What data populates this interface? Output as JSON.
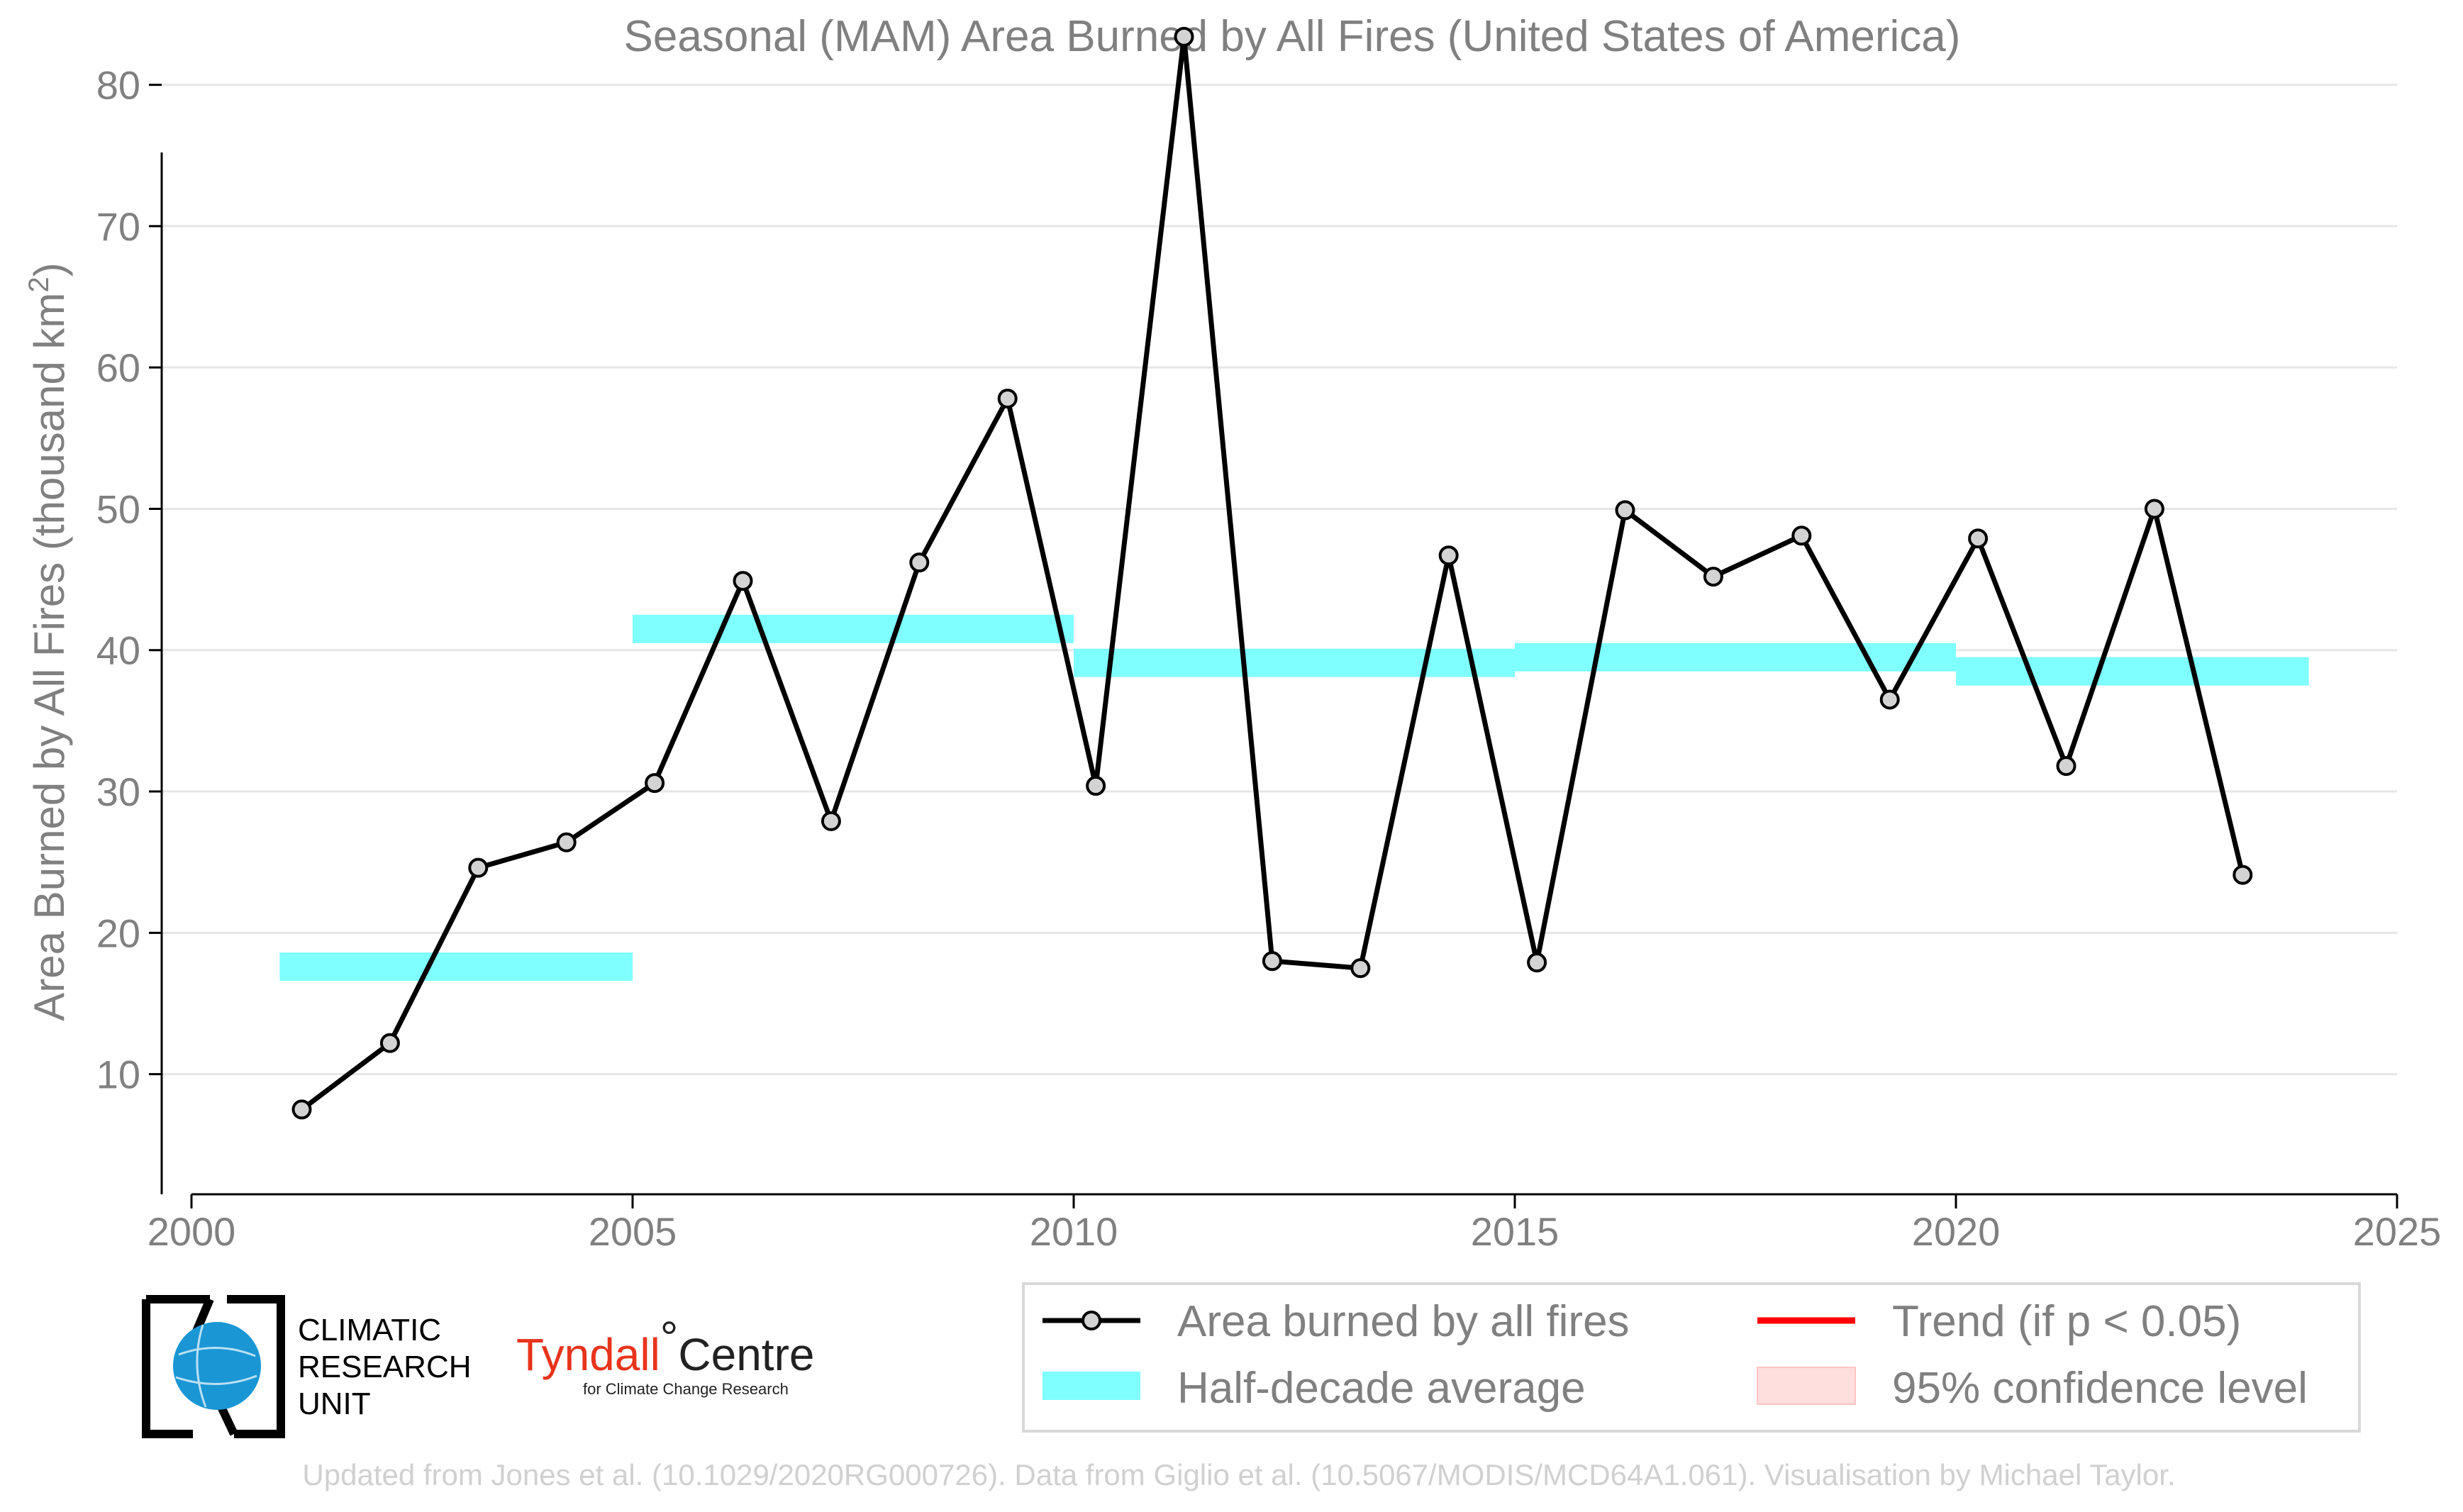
{
  "chart_data": {
    "type": "line",
    "title": "Seasonal (MAM) Area Burned by All Fires (United States of America)",
    "ylabel": "Area Burned by All Fires (thousand km",
    "ylabel_superscript": "2",
    "ylabel_close": ")",
    "xlabel": "",
    "xlim": [
      2000,
      2025
    ],
    "ylim": [
      1.5,
      86
    ],
    "xticks": [
      2000,
      2005,
      2010,
      2015,
      2020,
      2025
    ],
    "yticks": [
      10,
      20,
      30,
      40,
      50,
      60,
      70,
      80
    ],
    "grid": "horizontal",
    "series": [
      {
        "name": "Area burned by all fires",
        "color": "#000000",
        "marker_fill": "#d3d3d3",
        "x": [
          2001,
          2002,
          2003,
          2004,
          2005,
          2006,
          2007,
          2008,
          2009,
          2010,
          2011,
          2012,
          2013,
          2014,
          2015,
          2016,
          2017,
          2018,
          2019,
          2020,
          2021,
          2022,
          2023
        ],
        "y": [
          7.5,
          12.2,
          24.6,
          26.4,
          30.6,
          44.9,
          27.9,
          46.2,
          57.8,
          30.4,
          83.4,
          18.0,
          17.5,
          46.7,
          17.9,
          49.9,
          45.2,
          48.1,
          36.5,
          47.9,
          31.8,
          50.0,
          24.1
        ]
      },
      {
        "name": "Half-decade average",
        "color": "#7fffff",
        "segments": [
          {
            "x0": 2001,
            "x1": 2005,
            "y": 17.6
          },
          {
            "x0": 2005,
            "x1": 2010,
            "y": 41.5
          },
          {
            "x0": 2010,
            "x1": 2015,
            "y": 39.1
          },
          {
            "x0": 2015,
            "x1": 2020,
            "y": 39.5
          },
          {
            "x0": 2020,
            "x1": 2024,
            "y": 38.5
          }
        ]
      }
    ],
    "legend": [
      {
        "label": "Area burned by all fires",
        "kind": "line-marker",
        "color": "#000000"
      },
      {
        "label": "Trend (if p < 0.05)",
        "kind": "line",
        "color": "#ff0000"
      },
      {
        "label": "Half-decade average",
        "kind": "patch",
        "color": "#7fffff"
      },
      {
        "label": "95% confidence level",
        "kind": "patch",
        "color": "#ffdede"
      }
    ],
    "legend_position": "bottom-right"
  },
  "logos": {
    "cru_line1": "CLIMATIC",
    "cru_line2": "RESEARCH",
    "cru_line3": "UNIT",
    "tyndall_name": "Tyndall",
    "tyndall_degree": "°",
    "tyndall_centre": "Centre",
    "tyndall_sub": "for Climate Change Research"
  },
  "footer": "Updated from Jones et al. (10.1029/2020RG000726). Data from Giglio et al. (10.5067/MODIS/MCD64A1.061). Visualisation by Michael Taylor."
}
